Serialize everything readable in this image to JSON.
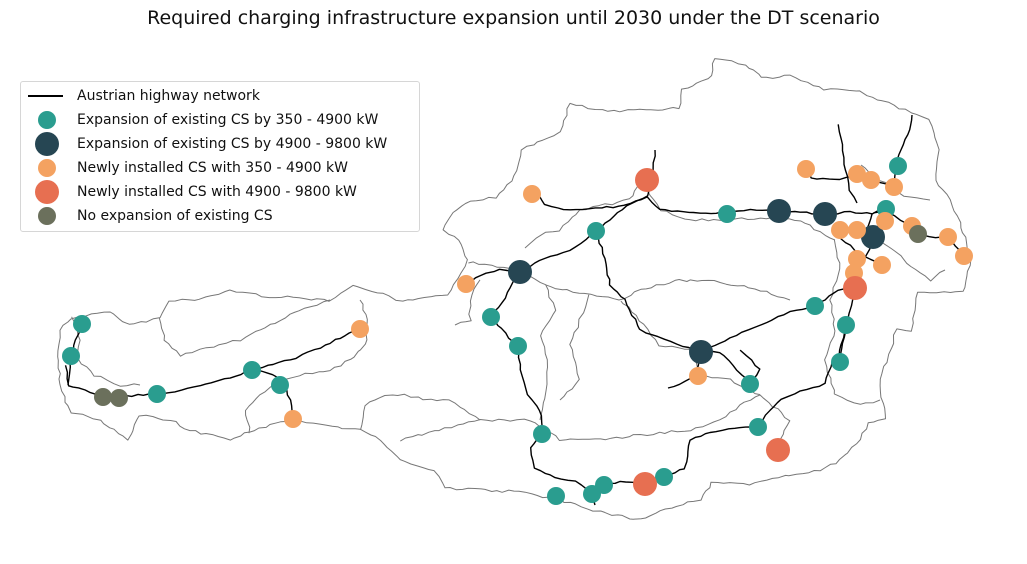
{
  "title": "Required charging infrastructure expansion until 2030 under the DT scenario",
  "colors": {
    "border": "#777777",
    "highway": "#000000",
    "teal": "#2a9d8f",
    "dark": "#264653",
    "orange": "#f4a261",
    "red": "#e76f51",
    "grey": "#6b705c"
  },
  "legend": {
    "highway": "Austrian highway network",
    "cat_teal": "Expansion of existing CS by 350 - 4900 kW",
    "cat_dark": "Expansion of existing CS by 4900 - 9800 kW",
    "cat_orange": "Newly installed CS with 350 - 4900 kW",
    "cat_red": "Newly installed CS with 4900 - 9800 kW",
    "cat_grey": "No expansion of existing CS"
  },
  "legend_icons": [
    "line-icon",
    "small-teal-dot-icon",
    "large-dark-dot-icon",
    "small-orange-dot-icon",
    "large-red-dot-icon",
    "small-grey-dot-icon"
  ]
}
